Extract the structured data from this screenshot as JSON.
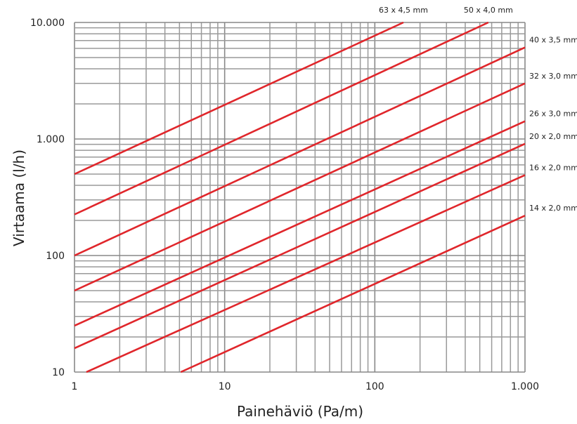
{
  "chart_data": {
    "type": "line",
    "title": "",
    "xlabel": "Painehäviö (Pa/m)",
    "ylabel": "Virtaama (l/h)",
    "x_scale": "log",
    "y_scale": "log",
    "xlim": [
      1,
      1000
    ],
    "ylim": [
      10,
      10000
    ],
    "grid": true,
    "x_ticks": [
      1,
      10,
      100,
      1000
    ],
    "x_tick_labels": [
      "1",
      "10",
      "100",
      "1.000"
    ],
    "y_ticks": [
      10,
      100,
      1000,
      10000
    ],
    "y_tick_labels": [
      "10",
      "100",
      "1.000",
      "10.000"
    ],
    "line_color": "#e0262b",
    "series": [
      {
        "name": "63 x 4,5 mm",
        "x": [
          1,
          155
        ],
        "y": [
          500,
          10000
        ]
      },
      {
        "name": "50 x 4,0 mm",
        "x": [
          1,
          570
        ],
        "y": [
          225,
          10000
        ]
      },
      {
        "name": "40 x 3,5 mm",
        "x": [
          1,
          1000
        ],
        "y": [
          100,
          6100
        ]
      },
      {
        "name": "32 x 3,0 mm",
        "x": [
          1,
          1000
        ],
        "y": [
          50,
          3000
        ]
      },
      {
        "name": "26 x 3,0 mm",
        "x": [
          1,
          1000
        ],
        "y": [
          25,
          1420
        ]
      },
      {
        "name": "20 x 2,0 mm",
        "x": [
          1,
          1000
        ],
        "y": [
          16,
          910
        ]
      },
      {
        "name": "16 x 2,0 mm",
        "x": [
          1.2,
          1000
        ],
        "y": [
          10,
          490
        ]
      },
      {
        "name": "14 x 2,0 mm",
        "x": [
          5.1,
          1000
        ],
        "y": [
          10,
          220
        ]
      }
    ]
  }
}
